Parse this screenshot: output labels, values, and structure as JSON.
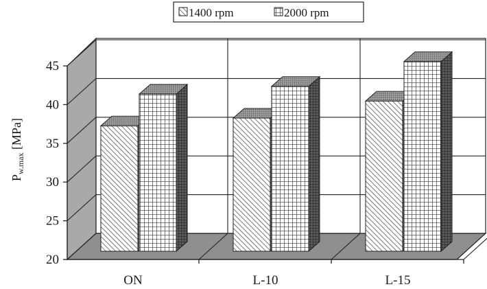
{
  "chart_data": {
    "type": "bar",
    "categories": [
      "ON",
      "L-10",
      "L-15"
    ],
    "series": [
      {
        "name": "1400 rpm",
        "values": [
          36.2,
          37.2,
          39.4
        ],
        "pattern": "diagonal-hatch"
      },
      {
        "name": "2000 rpm",
        "values": [
          40.3,
          41.3,
          44.5
        ],
        "pattern": "grid-hatch"
      }
    ],
    "title": "",
    "xlabel": "",
    "ylabel": "P",
    "ylabel_subscript": "w.max",
    "ylabel_unit": "[MPa]",
    "ylim": [
      20,
      45
    ],
    "yticks": [
      "20",
      "25",
      "30",
      "35",
      "40",
      "45"
    ],
    "grid": true,
    "legend_position": "top-center",
    "style": "3d-clustered-bar",
    "colors": {
      "wall": "#a9a9a9",
      "floor": "#8f8f8f",
      "bar_face": "#ffffff",
      "bar_side": "#5a5a5a",
      "bar_top": "#9a9a9a"
    }
  }
}
